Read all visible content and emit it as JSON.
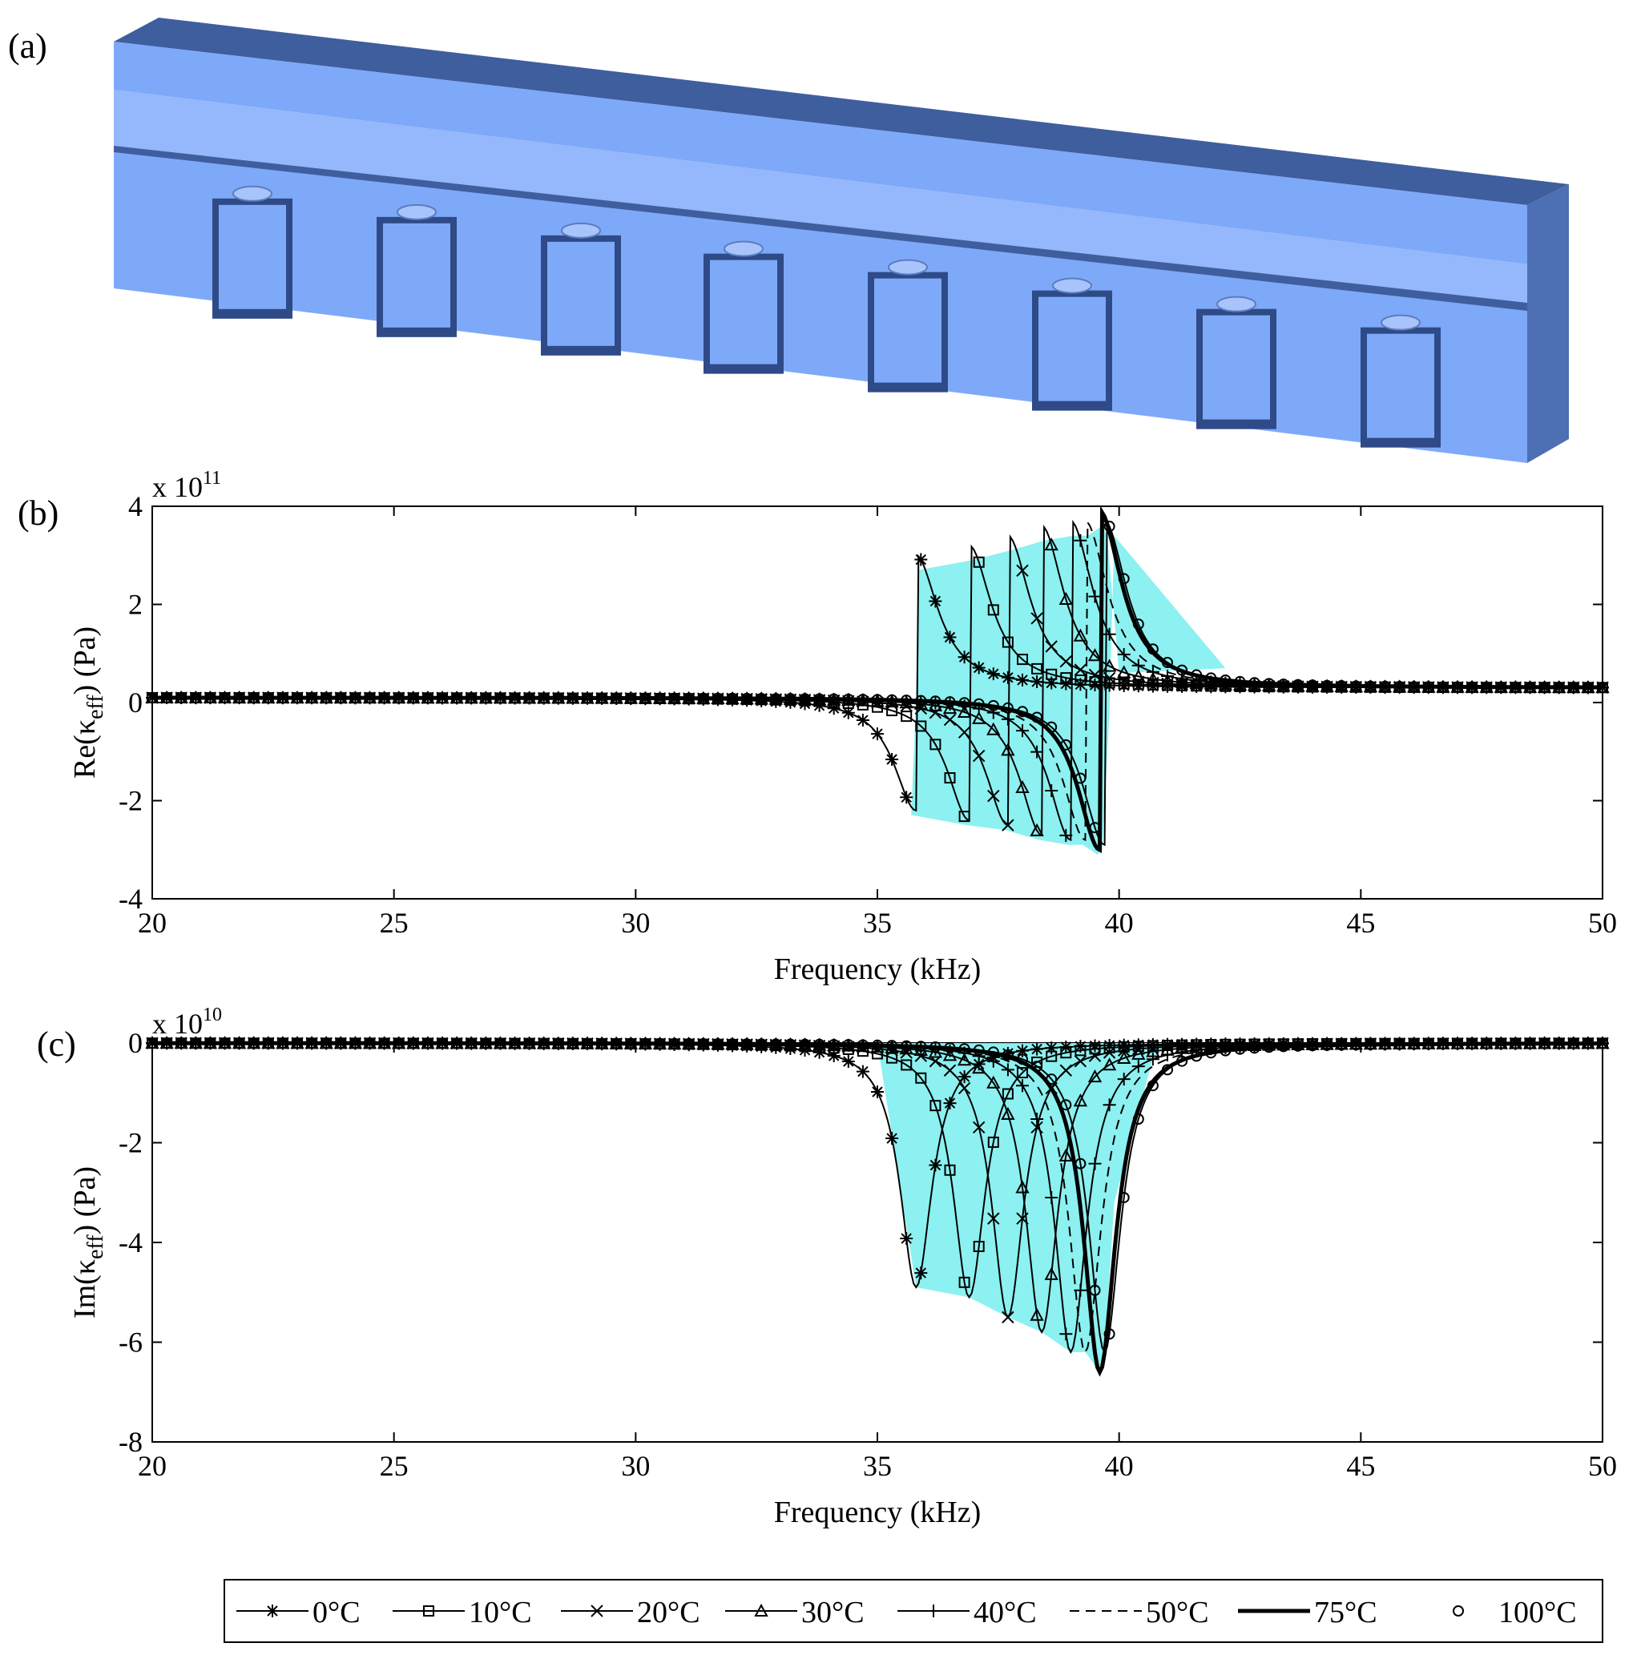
{
  "panels": {
    "a": {
      "label": "(a)"
    },
    "b": {
      "label": "(b)"
    },
    "c": {
      "label": "(c)"
    }
  },
  "colors": {
    "band": "#7FF0EE",
    "curve": "#000000",
    "block_front": "#7EA9F9",
    "block_top": "#95B7FB",
    "block_side": "#3F5E9E"
  },
  "legend": {
    "entries": [
      {
        "label": "0°C",
        "marker": "star",
        "line": "solid"
      },
      {
        "label": "10°C",
        "marker": "square",
        "line": "solid"
      },
      {
        "label": "20°C",
        "marker": "x",
        "line": "solid"
      },
      {
        "label": "30°C",
        "marker": "triangle",
        "line": "solid"
      },
      {
        "label": "40°C",
        "marker": "plus",
        "line": "solid"
      },
      {
        "label": "50°C",
        "marker": "none",
        "line": "dashed"
      },
      {
        "label": "75°C",
        "marker": "none",
        "line": "thick"
      },
      {
        "label": "100°C",
        "marker": "circle",
        "line": "none"
      }
    ]
  },
  "chart_data": [
    {
      "type": "line",
      "panel": "b",
      "xlabel": "Frequency (kHz)",
      "ylabel": "Re(κeff) (Pa)",
      "ylabel_main": "Re(κ",
      "ylabel_sub": "eff",
      "ylabel_tail": ") (Pa)",
      "exponent_prefix": "x 10",
      "exponent_power": "11",
      "xlim": [
        20,
        50
      ],
      "ylim": [
        -4,
        4
      ],
      "xticks": [
        20,
        25,
        30,
        35,
        40,
        45,
        50
      ],
      "xtick_labels": [
        "20",
        "25",
        "30",
        "35",
        "40",
        "45",
        "50"
      ],
      "yticks": [
        -4,
        -2,
        0,
        2,
        4
      ],
      "ytick_labels": [
        "-4",
        "-2",
        "0",
        "2",
        "4"
      ],
      "grid": false,
      "legend_placement": "bottom",
      "resonance_f0": [
        35.8,
        36.9,
        37.7,
        38.4,
        39.0,
        39.3,
        39.6,
        39.7
      ],
      "series": [
        {
          "name": "0°C",
          "f0": 35.8,
          "ymin": -2.3,
          "ymax": 2.7
        },
        {
          "name": "10°C",
          "f0": 36.9,
          "ymin": -2.5,
          "ymax": 2.9
        },
        {
          "name": "20°C",
          "f0": 37.7,
          "ymin": -2.6,
          "ymax": 3.1
        },
        {
          "name": "30°C",
          "f0": 38.4,
          "ymin": -2.8,
          "ymax": 3.3
        },
        {
          "name": "40°C",
          "f0": 39.0,
          "ymin": -2.9,
          "ymax": 3.4
        },
        {
          "name": "50°C",
          "f0": 39.3,
          "ymin": -2.9,
          "ymax": 3.4
        },
        {
          "name": "75°C",
          "f0": 39.6,
          "ymin": -3.1,
          "ymax": 3.6
        },
        {
          "name": "100°C",
          "f0": 39.7,
          "ymin": -3.0,
          "ymax": 3.4
        }
      ]
    },
    {
      "type": "line",
      "panel": "c",
      "xlabel": "Frequency (kHz)",
      "ylabel": "Im(κeff) (Pa)",
      "ylabel_main": "Im(κ",
      "ylabel_sub": "eff",
      "ylabel_tail": ") (Pa)",
      "exponent_prefix": "x 10",
      "exponent_power": "10",
      "xlim": [
        20,
        50
      ],
      "ylim": [
        -8,
        0
      ],
      "xticks": [
        20,
        25,
        30,
        35,
        40,
        45,
        50
      ],
      "xtick_labels": [
        "20",
        "25",
        "30",
        "35",
        "40",
        "45",
        "50"
      ],
      "yticks": [
        -8,
        -6,
        -4,
        -2,
        0
      ],
      "ytick_labels": [
        "-8",
        "-6",
        "-4",
        "-2",
        "0"
      ],
      "grid": false,
      "legend_placement": "bottom",
      "series": [
        {
          "name": "0°C",
          "f0": 35.8,
          "ymin": -4.9
        },
        {
          "name": "10°C",
          "f0": 36.9,
          "ymin": -5.1
        },
        {
          "name": "20°C",
          "f0": 37.7,
          "ymin": -5.5
        },
        {
          "name": "30°C",
          "f0": 38.4,
          "ymin": -5.8
        },
        {
          "name": "40°C",
          "f0": 39.0,
          "ymin": -6.2
        },
        {
          "name": "50°C",
          "f0": 39.3,
          "ymin": -6.2
        },
        {
          "name": "75°C",
          "f0": 39.6,
          "ymin": -6.6
        },
        {
          "name": "100°C",
          "f0": 39.7,
          "ymin": -6.2
        }
      ]
    }
  ]
}
